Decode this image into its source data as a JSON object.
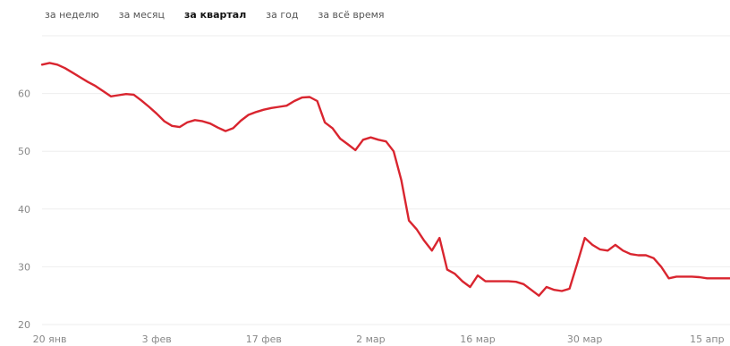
{
  "tabs": [
    {
      "label": "за неделю",
      "active": false
    },
    {
      "label": "за месяц",
      "active": false
    },
    {
      "label": "за квартал",
      "active": true
    },
    {
      "label": "за год",
      "active": false
    },
    {
      "label": "за всё время",
      "active": false
    }
  ],
  "colors": {
    "line": "#d9252f",
    "grid": "#eeeeee",
    "tick_text": "#888888"
  },
  "chart_data": {
    "type": "line",
    "title": "",
    "xlabel": "",
    "ylabel": "",
    "ylim": [
      20,
      70
    ],
    "yticks": [
      20,
      30,
      40,
      50,
      60
    ],
    "xticks": [
      {
        "label": "20 янв",
        "x": 0
      },
      {
        "label": "3 фев",
        "x": 14
      },
      {
        "label": "17 фев",
        "x": 28
      },
      {
        "label": "2 мар",
        "x": 42
      },
      {
        "label": "16 мар",
        "x": 56
      },
      {
        "label": "30 мар",
        "x": 70
      },
      {
        "label": "15 апр",
        "x": 86
      }
    ],
    "grid": true,
    "legend": "none",
    "series": [
      {
        "x": [
          -1,
          0,
          1,
          2,
          3,
          4,
          5,
          6,
          7,
          8,
          9,
          10,
          11,
          12,
          13,
          14,
          15,
          16,
          17,
          18,
          19,
          20,
          21,
          22,
          23,
          24,
          25,
          26,
          27,
          28,
          29,
          30,
          31,
          32,
          33,
          34,
          35,
          36,
          37,
          38,
          39,
          40,
          41,
          42,
          43,
          44,
          45,
          46,
          47,
          48,
          49,
          50,
          51,
          52,
          53,
          54,
          55,
          56,
          57,
          58,
          59,
          60,
          61,
          62,
          63,
          64,
          65,
          66,
          67,
          68,
          69,
          70,
          71,
          72,
          73,
          74,
          75,
          76,
          77,
          78,
          79,
          80,
          81,
          82,
          83,
          84,
          85,
          86,
          87,
          88,
          89
        ],
        "values": [
          65.0,
          65.3,
          65.0,
          64.4,
          63.6,
          62.8,
          62.0,
          61.3,
          60.4,
          59.5,
          59.7,
          59.9,
          59.8,
          58.8,
          57.7,
          56.5,
          55.2,
          54.4,
          54.2,
          55.0,
          55.4,
          55.2,
          54.8,
          54.1,
          53.5,
          54.0,
          55.3,
          56.3,
          56.8,
          57.2,
          57.5,
          57.7,
          57.9,
          58.7,
          59.3,
          59.4,
          58.7,
          55.0,
          54.0,
          52.2,
          51.2,
          50.2,
          52.0,
          52.4,
          52.0,
          51.7,
          50.0,
          45.0,
          38.0,
          36.5,
          34.5,
          32.8,
          35.0,
          29.5,
          28.8,
          27.5,
          26.5,
          28.5,
          27.5,
          27.5,
          27.5,
          27.5,
          27.4,
          27.0,
          26.0,
          25.0,
          26.5,
          26.0,
          25.8,
          26.2,
          30.5,
          35.0,
          33.8,
          33.0,
          32.8,
          33.8,
          32.8,
          32.2,
          32.0,
          32.0,
          31.5,
          30.0,
          28.0,
          28.3,
          28.3,
          28.3,
          28.2,
          28.0,
          28.0,
          28.0,
          28.0
        ]
      }
    ]
  }
}
